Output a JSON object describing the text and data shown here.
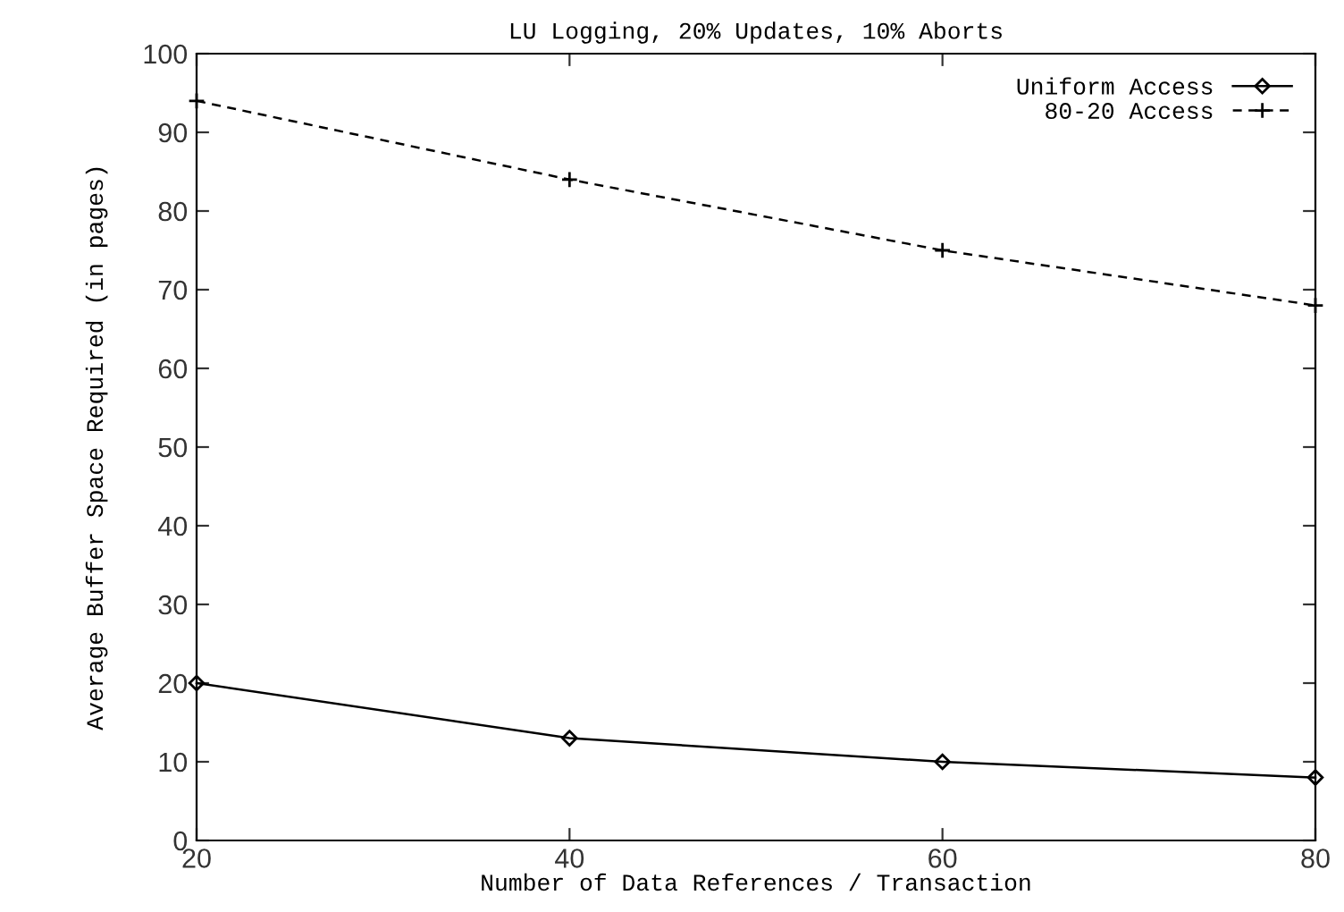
{
  "chart_data": {
    "type": "line",
    "title": "LU Logging, 20% Updates, 10% Aborts",
    "xlabel": "Number of Data References / Transaction",
    "ylabel": "Average Buffer Space Required (in pages)",
    "x": [
      20,
      40,
      60,
      80
    ],
    "series": [
      {
        "name": "Uniform Access",
        "color": "#000000",
        "values": [
          20,
          13,
          10,
          8
        ],
        "marker": "diamond",
        "line_style": "solid"
      },
      {
        "name": "80-20 Access",
        "color": "#000000",
        "values": [
          94,
          84,
          75,
          68
        ],
        "marker": "cross",
        "line_style": "dashed"
      }
    ],
    "xlim": [
      20,
      80
    ],
    "xticks": [
      20,
      40,
      60,
      80
    ],
    "ylim": [
      0,
      100
    ],
    "yticks": [
      0,
      10,
      20,
      30,
      40,
      50,
      60,
      70,
      80,
      90,
      100
    ],
    "grid": false,
    "legend": "top right"
  }
}
